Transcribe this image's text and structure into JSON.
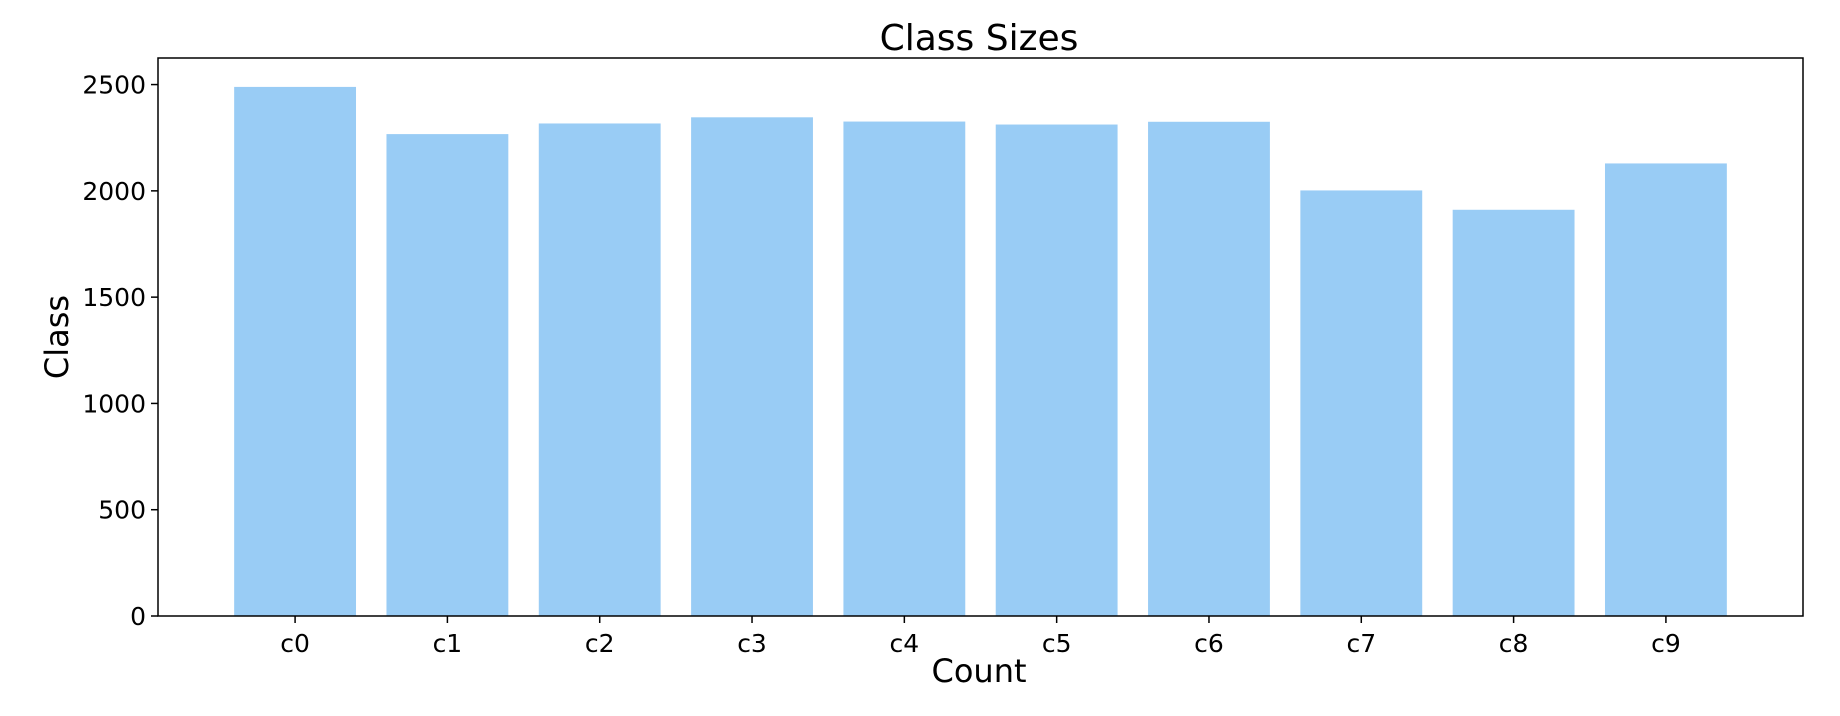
{
  "chart_data": {
    "type": "bar",
    "title": "Class Sizes",
    "xlabel": "Count",
    "ylabel": "Class",
    "categories": [
      "c0",
      "c1",
      "c2",
      "c3",
      "c4",
      "c5",
      "c6",
      "c7",
      "c8",
      "c9"
    ],
    "values": [
      2489,
      2267,
      2317,
      2346,
      2326,
      2312,
      2325,
      2002,
      1911,
      2129
    ],
    "ylim": [
      0,
      2625
    ],
    "yticks": [
      0,
      500,
      1000,
      1500,
      2000,
      2500
    ],
    "grid": false,
    "legend": "none",
    "colors": {
      "bar": "#99CCF5",
      "axis": "#000000",
      "background": "#ffffff"
    }
  }
}
